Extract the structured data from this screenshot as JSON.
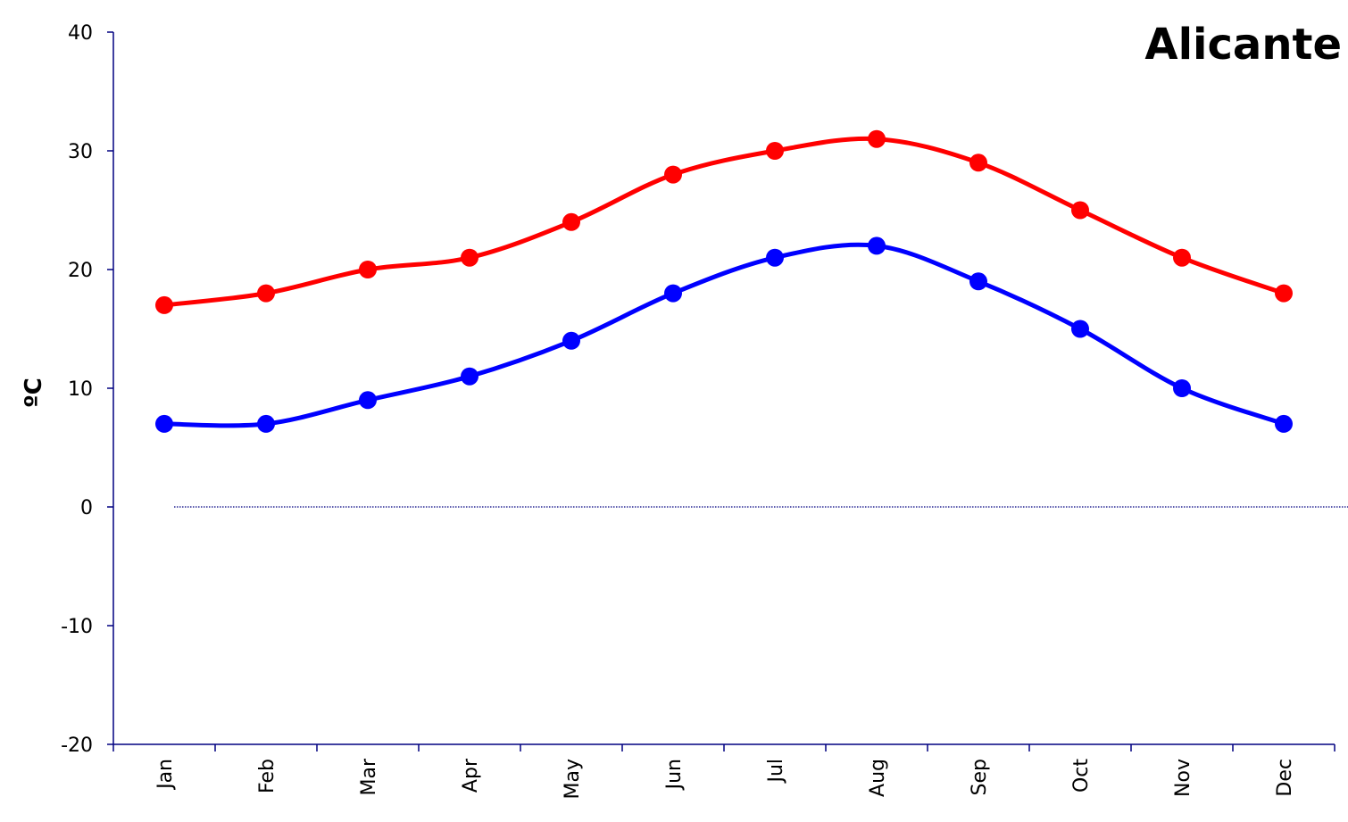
{
  "chart_data": {
    "type": "line",
    "title": "Alicante",
    "ylabel": "ºC",
    "xlabel": "",
    "ylim": [
      -20,
      40
    ],
    "yticks": [
      -20,
      -10,
      0,
      10,
      20,
      30,
      40
    ],
    "categories": [
      "Jan",
      "Feb",
      "Mar",
      "Apr",
      "May",
      "Jun",
      "Jul",
      "Aug",
      "Sep",
      "Oct",
      "Nov",
      "Dec"
    ],
    "grid": false,
    "series": [
      {
        "color": "#ff0000",
        "values": [
          17,
          18,
          20,
          21,
          24,
          28,
          30,
          31,
          29,
          25,
          21,
          18
        ]
      },
      {
        "color": "#0000ff",
        "values": [
          7,
          7,
          9,
          11,
          14,
          18,
          21,
          22,
          19,
          15,
          10,
          7
        ]
      }
    ],
    "reference_line": {
      "y": 0,
      "style": "dotted",
      "color": "#000080"
    }
  }
}
